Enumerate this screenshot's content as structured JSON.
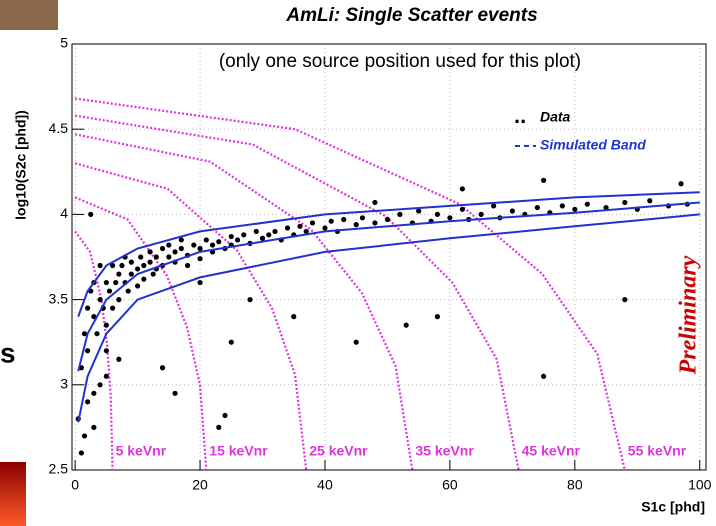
{
  "chart_data": {
    "type": "scatter",
    "title": "AmLi: Single Scatter events",
    "note": "(only one source position used for this plot)",
    "watermark": "Preliminary",
    "fragment_text": "s",
    "x_label": "S1c [phd]",
    "y_label": "log10(S2c [phd])",
    "xlim": [
      -0.5,
      101
    ],
    "ylim": [
      2.5,
      5
    ],
    "xticks": [
      0,
      20,
      40,
      60,
      80,
      100
    ],
    "yticks": [
      2.5,
      3,
      3.5,
      4,
      4.5,
      5
    ],
    "grid": true,
    "legend": "upper-right",
    "series": [
      {
        "name": "Data",
        "color": "#000000",
        "x": [
          1,
          1.5,
          2,
          2,
          2.5,
          3,
          3,
          3.5,
          4,
          4,
          4.5,
          5,
          5,
          5.5,
          6,
          6,
          6.5,
          7,
          7,
          7.5,
          8,
          8,
          8.5,
          9,
          9,
          10,
          10,
          10.5,
          11,
          11,
          12,
          12,
          12.5,
          13,
          13,
          14,
          14,
          15,
          15,
          16,
          16,
          17,
          17,
          18,
          18,
          19,
          20,
          20,
          21,
          22,
          22,
          23,
          24,
          25,
          25,
          26,
          27,
          28,
          29,
          30,
          31,
          32,
          33,
          34,
          35,
          36,
          37,
          38,
          40,
          41,
          42,
          43,
          45,
          46,
          48,
          50,
          52,
          54,
          55,
          57,
          58,
          60,
          62,
          63,
          65,
          67,
          68,
          70,
          72,
          74,
          75,
          76,
          78,
          80,
          82,
          85,
          88,
          90,
          92,
          95,
          97,
          98,
          0.5,
          1,
          1.5,
          2,
          3,
          4,
          5,
          2.5,
          14,
          16,
          23,
          24,
          25,
          28,
          45,
          53,
          58,
          75,
          88,
          3,
          5,
          7,
          62,
          48,
          35,
          20
        ],
        "values": [
          3.1,
          3.3,
          3.45,
          3.2,
          3.55,
          3.4,
          3.6,
          3.3,
          3.5,
          3.7,
          3.45,
          3.6,
          3.35,
          3.55,
          3.7,
          3.45,
          3.6,
          3.65,
          3.5,
          3.7,
          3.6,
          3.75,
          3.55,
          3.65,
          3.72,
          3.68,
          3.58,
          3.75,
          3.62,
          3.7,
          3.72,
          3.78,
          3.65,
          3.75,
          3.68,
          3.8,
          3.7,
          3.75,
          3.82,
          3.72,
          3.78,
          3.8,
          3.85,
          3.76,
          3.7,
          3.82,
          3.8,
          3.74,
          3.85,
          3.78,
          3.82,
          3.84,
          3.8,
          3.87,
          3.82,
          3.85,
          3.88,
          3.83,
          3.9,
          3.86,
          3.88,
          3.9,
          3.85,
          3.92,
          3.88,
          3.93,
          3.9,
          3.95,
          3.92,
          3.96,
          3.9,
          3.97,
          3.94,
          3.98,
          3.95,
          3.97,
          4.0,
          3.95,
          4.02,
          3.96,
          4.0,
          3.98,
          4.03,
          3.97,
          4.0,
          4.05,
          3.98,
          4.02,
          4.0,
          4.04,
          4.2,
          4.01,
          4.05,
          4.03,
          4.06,
          4.04,
          4.07,
          4.03,
          4.08,
          4.05,
          4.18,
          4.06,
          2.8,
          2.6,
          2.7,
          2.9,
          2.75,
          3.0,
          3.05,
          4.0,
          3.1,
          2.95,
          2.75,
          2.82,
          3.25,
          3.5,
          3.25,
          3.35,
          3.4,
          3.05,
          3.5,
          2.95,
          3.2,
          3.15,
          4.15,
          4.07,
          3.4,
          3.6
        ]
      },
      {
        "name": "Simulated Band",
        "color": "#2233cc",
        "lines": [
          {
            "x": [
              0.5,
              2,
              5,
              10,
              20,
              40,
              60,
              80,
              100
            ],
            "values": [
              3.4,
              3.55,
              3.7,
              3.8,
              3.9,
              4.0,
              4.05,
              4.1,
              4.13
            ]
          },
          {
            "x": [
              0.5,
              2,
              5,
              10,
              20,
              40,
              60,
              80,
              100
            ],
            "values": [
              3.08,
              3.3,
              3.5,
              3.65,
              3.78,
              3.9,
              3.96,
              4.01,
              4.07
            ]
          },
          {
            "x": [
              0.5,
              2,
              5,
              10,
              20,
              40,
              60,
              80,
              100
            ],
            "values": [
              2.78,
              3.05,
              3.3,
              3.5,
              3.63,
              3.78,
              3.86,
              3.93,
              4.0
            ]
          }
        ]
      }
    ],
    "contours": [
      {
        "name": "5 keVnr",
        "color": "#dd33dd",
        "x": [
          0,
          2.4,
          4.2,
          5.1,
          5.7,
          6
        ],
        "values": [
          3.9,
          3.78,
          3.5,
          3.24,
          2.94,
          2.5
        ]
      },
      {
        "name": "15 keVnr",
        "color": "#dd33dd",
        "x": [
          0,
          8.4,
          14.7,
          17.9,
          20,
          21
        ],
        "values": [
          4.1,
          3.97,
          3.64,
          3.34,
          3.0,
          2.5
        ]
      },
      {
        "name": "25 keVnr",
        "color": "#dd33dd",
        "x": [
          0,
          14.8,
          25.9,
          31.5,
          35.2,
          37
        ],
        "values": [
          4.3,
          4.15,
          3.79,
          3.45,
          3.06,
          2.5
        ]
      },
      {
        "name": "35 keVnr",
        "color": "#dd33dd",
        "x": [
          0,
          21.6,
          37.8,
          45.9,
          51.3,
          54
        ],
        "values": [
          4.47,
          4.31,
          3.91,
          3.54,
          3.11,
          2.5
        ]
      },
      {
        "name": "45 keVnr",
        "color": "#dd33dd",
        "x": [
          0,
          28.4,
          49.7,
          60.4,
          67.5,
          71
        ],
        "values": [
          4.58,
          4.41,
          3.99,
          3.6,
          3.15,
          2.5
        ]
      },
      {
        "name": "55 keVnr",
        "color": "#dd33dd",
        "x": [
          0,
          35.2,
          61.6,
          74.8,
          83.6,
          88
        ],
        "values": [
          4.68,
          4.5,
          4.06,
          3.65,
          3.18,
          2.5
        ]
      }
    ]
  }
}
